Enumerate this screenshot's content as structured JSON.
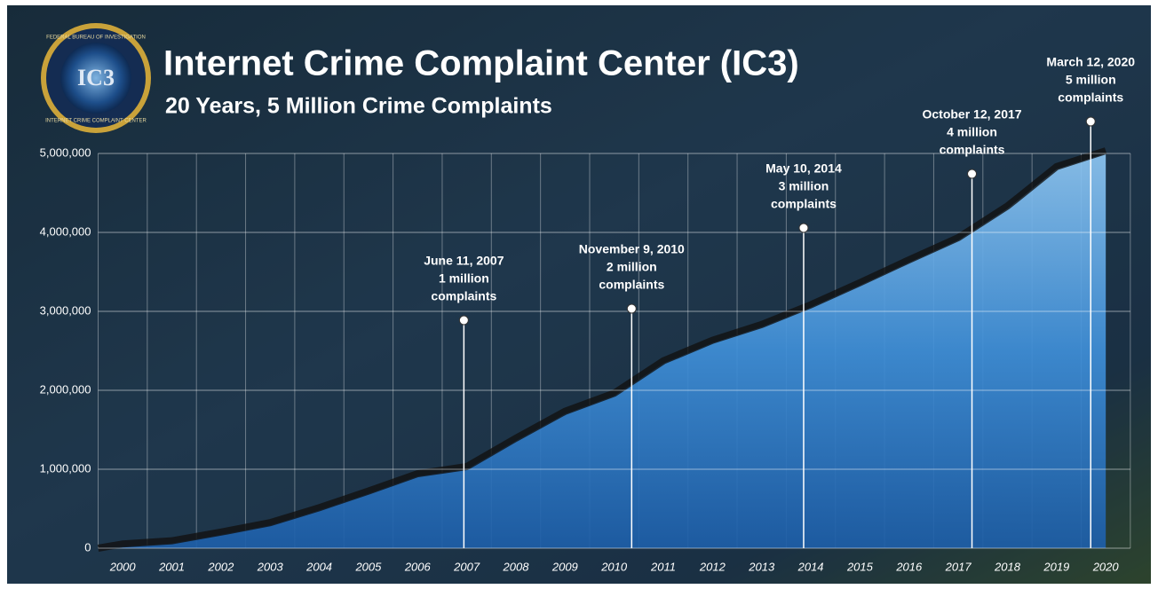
{
  "chart_data": {
    "type": "area",
    "title": "Internet Crime Complaint Center (IC3)",
    "subtitle": "20 Years, 5 Million Crime Complaints",
    "logo": {
      "top": "FEDERAL BUREAU OF INVESTIGATION",
      "bottom": "INTERNET CRIME COMPLAINT CENTER",
      "mark": "IC3"
    },
    "categories": [
      "2000",
      "2001",
      "2002",
      "2003",
      "2004",
      "2005",
      "2006",
      "2007",
      "2008",
      "2009",
      "2010",
      "2011",
      "2012",
      "2013",
      "2014",
      "2015",
      "2016",
      "2017",
      "2018",
      "2019",
      "2020"
    ],
    "values": [
      20000,
      60000,
      170000,
      290000,
      480000,
      690000,
      910000,
      1000000,
      1360000,
      1700000,
      1930000,
      2340000,
      2600000,
      2800000,
      3050000,
      3330000,
      3620000,
      3900000,
      4300000,
      4800000,
      5000000
    ],
    "color": "#3f8fd8",
    "ylim": [
      0,
      5000000
    ],
    "yticks": [
      0,
      {
        "value": 1000000,
        "label": "1,000,000"
      },
      {
        "value": 2000000,
        "label": "2,000,000"
      },
      {
        "value": 3000000,
        "label": "3,000,000"
      },
      {
        "value": 4000000,
        "label": "4,000,000"
      },
      {
        "value": 5000000,
        "label": "5,000,000"
      }
    ],
    "grid": true,
    "annotations": [
      {
        "date": "June 11, 2007",
        "amount": "1 million",
        "unit": "complaints",
        "value": 1000000
      },
      {
        "date": "November 9, 2010",
        "amount": "2 million",
        "unit": "complaints",
        "value": 2000000
      },
      {
        "date": "May 10, 2014",
        "amount": "3 million",
        "unit": "complaints",
        "value": 3000000
      },
      {
        "date": "October 12, 2017",
        "amount": "4 million",
        "unit": "complaints",
        "value": 4000000
      },
      {
        "date": "March 12, 2020",
        "amount": "5 million",
        "unit": "complaints",
        "value": 5000000
      }
    ]
  }
}
